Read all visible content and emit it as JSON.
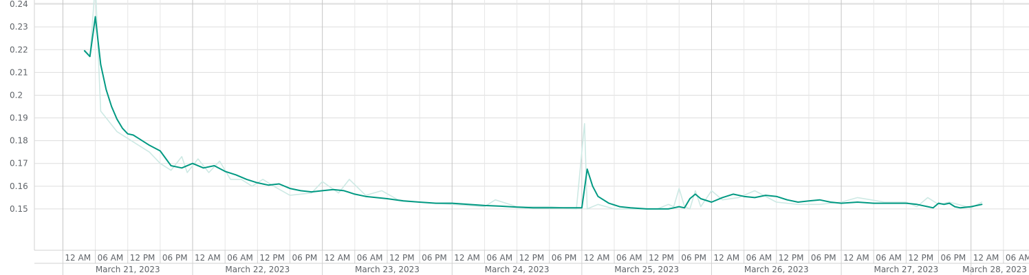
{
  "chart_data": {
    "type": "line",
    "title": "",
    "xlabel": "",
    "ylabel": "",
    "ylim": [
      0.14,
      0.25
    ],
    "y_ticks": [
      "0.15",
      "0.16",
      "0.17",
      "0.18",
      "0.19",
      "0.2",
      "0.21",
      "0.22",
      "0.23",
      "0.24"
    ],
    "grid": true,
    "legend": "none",
    "x_range": [
      "2023-03-20T20:00",
      "2023-03-28T12:00"
    ],
    "hour_ticks": [
      "12 AM",
      "06 AM",
      "12 PM",
      "06 PM"
    ],
    "day_labels": [
      {
        "date": "2023-03-21",
        "label": "March 21, 2023"
      },
      {
        "date": "2023-03-22",
        "label": "March 22, 2023"
      },
      {
        "date": "2023-03-23",
        "label": "March 23, 2023"
      },
      {
        "date": "2023-03-24",
        "label": "March 24, 2023"
      },
      {
        "date": "2023-03-25",
        "label": "March 25, 2023"
      },
      {
        "date": "2023-03-26",
        "label": "March 26, 2023"
      },
      {
        "date": "2023-03-27",
        "label": "March 27, 2023"
      },
      {
        "date": "2023-03-28",
        "label": "March 28, 2023"
      }
    ],
    "series": [
      {
        "color": "#cde9e4",
        "style": "raw",
        "x": [
          "2023-03-21T04:00",
          "2023-03-21T05:00",
          "2023-03-21T06:00",
          "2023-03-21T07:00",
          "2023-03-21T08:00",
          "2023-03-21T10:00",
          "2023-03-21T12:00",
          "2023-03-21T14:00",
          "2023-03-21T16:00",
          "2023-03-21T18:00",
          "2023-03-21T20:00",
          "2023-03-21T22:00",
          "2023-03-21T23:00",
          "2023-03-22T01:00",
          "2023-03-22T03:00",
          "2023-03-22T05:00",
          "2023-03-22T07:00",
          "2023-03-22T09:00",
          "2023-03-22T11:00",
          "2023-03-22T13:00",
          "2023-03-22T15:00",
          "2023-03-22T18:00",
          "2023-03-22T22:00",
          "2023-03-23T00:00",
          "2023-03-23T03:00",
          "2023-03-23T05:00",
          "2023-03-23T08:00",
          "2023-03-23T11:00",
          "2023-03-23T14:00",
          "2023-03-23T18:00",
          "2023-03-24T00:00",
          "2023-03-24T06:00",
          "2023-03-24T08:00",
          "2023-03-24T12:00",
          "2023-03-24T18:00",
          "2023-03-24T23:00",
          "2023-03-25T00:30",
          "2023-03-25T01:00",
          "2023-03-25T03:00",
          "2023-03-25T06:00",
          "2023-03-25T10:00",
          "2023-03-25T14:00",
          "2023-03-25T16:00",
          "2023-03-25T17:00",
          "2023-03-25T18:00",
          "2023-03-25T19:00",
          "2023-03-25T20:00",
          "2023-03-25T21:00",
          "2023-03-25T22:00",
          "2023-03-26T00:00",
          "2023-03-26T02:00",
          "2023-03-26T05:00",
          "2023-03-26T08:00",
          "2023-03-26T12:00",
          "2023-03-26T16:00",
          "2023-03-26T20:00",
          "2023-03-27T00:00",
          "2023-03-27T03:00",
          "2023-03-27T08:00",
          "2023-03-27T12:00",
          "2023-03-27T14:00",
          "2023-03-27T16:00",
          "2023-03-27T18:00",
          "2023-03-27T20:00",
          "2023-03-28T00:00",
          "2023-03-28T02:00"
        ],
        "values": [
          0.22,
          0.217,
          0.249,
          0.193,
          0.19,
          0.184,
          0.181,
          0.178,
          0.175,
          0.17,
          0.167,
          0.173,
          0.166,
          0.172,
          0.166,
          0.171,
          0.163,
          0.163,
          0.16,
          0.163,
          0.16,
          0.156,
          0.157,
          0.162,
          0.157,
          0.163,
          0.156,
          0.158,
          0.154,
          0.153,
          0.152,
          0.151,
          0.154,
          0.151,
          0.151,
          0.15,
          0.1875,
          0.15,
          0.152,
          0.15,
          0.15,
          0.15,
          0.152,
          0.151,
          0.159,
          0.151,
          0.15,
          0.158,
          0.151,
          0.158,
          0.154,
          0.155,
          0.158,
          0.153,
          0.152,
          0.152,
          0.153,
          0.155,
          0.153,
          0.153,
          0.151,
          0.155,
          0.152,
          0.153,
          0.1505,
          0.153
        ]
      },
      {
        "color": "#009982",
        "style": "smoothed",
        "x": [
          "2023-03-21T04:00",
          "2023-03-21T05:00",
          "2023-03-21T06:00",
          "2023-03-21T07:00",
          "2023-03-21T08:00",
          "2023-03-21T09:00",
          "2023-03-21T10:00",
          "2023-03-21T11:00",
          "2023-03-21T12:00",
          "2023-03-21T13:00",
          "2023-03-21T14:00",
          "2023-03-21T16:00",
          "2023-03-21T18:00",
          "2023-03-21T20:00",
          "2023-03-21T22:00",
          "2023-03-22T00:00",
          "2023-03-22T02:00",
          "2023-03-22T04:00",
          "2023-03-22T06:00",
          "2023-03-22T08:00",
          "2023-03-22T10:00",
          "2023-03-22T12:00",
          "2023-03-22T14:00",
          "2023-03-22T16:00",
          "2023-03-22T18:00",
          "2023-03-22T20:00",
          "2023-03-22T22:00",
          "2023-03-23T00:00",
          "2023-03-23T02:00",
          "2023-03-23T04:00",
          "2023-03-23T06:00",
          "2023-03-23T08:00",
          "2023-03-23T10:00",
          "2023-03-23T12:00",
          "2023-03-23T15:00",
          "2023-03-23T18:00",
          "2023-03-23T21:00",
          "2023-03-24T00:00",
          "2023-03-24T03:00",
          "2023-03-24T06:00",
          "2023-03-24T09:00",
          "2023-03-24T12:00",
          "2023-03-24T15:00",
          "2023-03-24T18:00",
          "2023-03-24T21:00",
          "2023-03-25T00:00",
          "2023-03-25T01:00",
          "2023-03-25T02:00",
          "2023-03-25T03:00",
          "2023-03-25T05:00",
          "2023-03-25T07:00",
          "2023-03-25T09:00",
          "2023-03-25T12:00",
          "2023-03-25T14:00",
          "2023-03-25T16:00",
          "2023-03-25T17:00",
          "2023-03-25T18:00",
          "2023-03-25T19:00",
          "2023-03-25T20:00",
          "2023-03-25T21:00",
          "2023-03-25T22:00",
          "2023-03-26T00:00",
          "2023-03-26T02:00",
          "2023-03-26T04:00",
          "2023-03-26T06:00",
          "2023-03-26T08:00",
          "2023-03-26T10:00",
          "2023-03-26T12:00",
          "2023-03-26T14:00",
          "2023-03-26T16:00",
          "2023-03-26T18:00",
          "2023-03-26T20:00",
          "2023-03-26T22:00",
          "2023-03-27T00:00",
          "2023-03-27T03:00",
          "2023-03-27T06:00",
          "2023-03-27T09:00",
          "2023-03-27T12:00",
          "2023-03-27T14:00",
          "2023-03-27T16:00",
          "2023-03-27T17:00",
          "2023-03-27T18:00",
          "2023-03-27T19:00",
          "2023-03-27T20:00",
          "2023-03-27T21:00",
          "2023-03-27T22:00",
          "2023-03-28T00:00",
          "2023-03-28T02:00"
        ],
        "values": [
          0.2195,
          0.217,
          0.2345,
          0.2135,
          0.2025,
          0.195,
          0.1895,
          0.1855,
          0.183,
          0.1825,
          0.181,
          0.178,
          0.1755,
          0.169,
          0.168,
          0.17,
          0.168,
          0.169,
          0.1665,
          0.165,
          0.163,
          0.1615,
          0.1605,
          0.161,
          0.159,
          0.158,
          0.1575,
          0.158,
          0.1585,
          0.158,
          0.1565,
          0.1555,
          0.155,
          0.1545,
          0.1535,
          0.153,
          0.1525,
          0.1525,
          0.152,
          0.1515,
          0.1512,
          0.1508,
          0.1505,
          0.1505,
          0.1505,
          0.1505,
          0.1675,
          0.16,
          0.1555,
          0.1525,
          0.151,
          0.1505,
          0.15,
          0.15,
          0.15,
          0.1505,
          0.151,
          0.1505,
          0.1545,
          0.1565,
          0.1545,
          0.153,
          0.155,
          0.1565,
          0.1555,
          0.155,
          0.156,
          0.1555,
          0.154,
          0.153,
          0.1535,
          0.154,
          0.153,
          0.1525,
          0.153,
          0.1525,
          0.1525,
          0.1525,
          0.152,
          0.151,
          0.1505,
          0.1525,
          0.152,
          0.1525,
          0.151,
          0.1505,
          0.151,
          0.152
        ]
      }
    ]
  }
}
